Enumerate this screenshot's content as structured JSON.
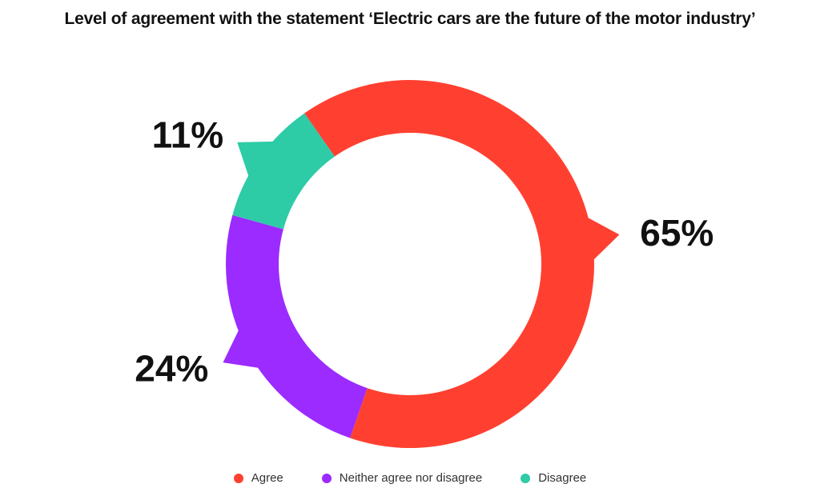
{
  "chart_data": {
    "type": "pie",
    "title": "Level of agreement with the statement ‘Electric cars are the future of the motor industry’",
    "series": [
      {
        "label": "Agree",
        "value": 65,
        "display": "65%",
        "color": "#ff4030"
      },
      {
        "label": "Neither agree nor disagree",
        "value": 24,
        "display": "24%",
        "color": "#9b2bff"
      },
      {
        "label": "Disagree",
        "value": 11,
        "display": "11%",
        "color": "#2ecba7"
      }
    ],
    "legend": "bottom-center"
  }
}
